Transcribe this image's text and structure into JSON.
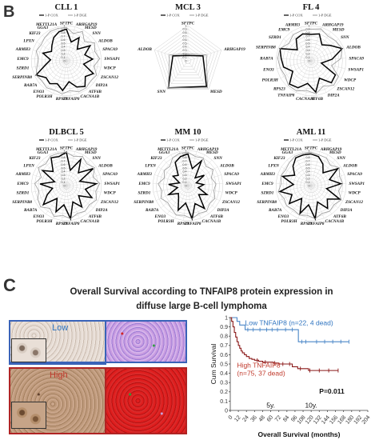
{
  "panel_b_letter": "B",
  "panel_c_letter": "C",
  "legend": {
    "cox": "1-P COX",
    "dge": "1-P DGE"
  },
  "radar_ticks": [
    "0",
    "0.1",
    "0.2",
    "0.3",
    "0.4",
    "0.5",
    "0.6",
    "0.7",
    "0.8",
    "0.9",
    "1"
  ],
  "colors": {
    "cox": "#000000",
    "dge": "#9a9a9a",
    "low_curve": "#4a86c7",
    "high_curve": "#8b1a1a",
    "low_text": "#2f74c0",
    "high_text": "#c0392b"
  },
  "chart_data": [
    {
      "type": "radar",
      "title": "CLL 1",
      "axes": [
        "SFTPC",
        "ARHGAP19",
        "MESD",
        "SNN",
        "ALDOB",
        "SPACA9",
        "SWSAP1",
        "WDCP",
        "ZSCAN12",
        "DIP2A",
        "ATF6B",
        "CACNA1B",
        "TNFAIP8",
        "RPS23",
        "POLR3H",
        "ENO3",
        "RAB7A",
        "SERPINB8",
        "SZRD1",
        "EMC9",
        "ARMH3",
        "LPXN",
        "KIF23",
        "GGA3",
        "METTL21A"
      ],
      "series": [
        {
          "name": "1-P COX",
          "values": [
            0.9,
            0.55,
            0.75,
            0.45,
            0.8,
            0.55,
            0.75,
            0.5,
            0.85,
            0.7,
            0.9,
            0.8,
            0.6,
            0.85,
            0.7,
            0.8,
            0.75,
            0.95,
            0.6,
            0.45,
            0.7,
            0.5,
            0.6,
            0.75,
            0.85
          ]
        },
        {
          "name": "1-P DGE",
          "values": [
            0.95,
            0.8,
            0.95,
            0.75,
            0.95,
            0.85,
            0.95,
            0.8,
            0.95,
            0.9,
            0.95,
            0.95,
            0.85,
            0.95,
            0.9,
            0.95,
            0.9,
            0.95,
            0.85,
            0.8,
            0.9,
            0.85,
            0.9,
            0.95,
            0.95
          ]
        }
      ]
    },
    {
      "type": "radar",
      "title": "MCL 3",
      "axes": [
        "SFTPC",
        "ARHGAP19",
        "MESD",
        "SNN",
        "ALDOB"
      ],
      "series": [
        {
          "name": "1-P COX",
          "values": [
            0.15,
            0.45,
            0.9,
            0.95,
            0.45
          ]
        },
        {
          "name": "1-P DGE",
          "values": [
            0.2,
            0.55,
            0.95,
            0.95,
            0.55
          ]
        }
      ]
    },
    {
      "type": "radar",
      "title": "FL 4",
      "axes": [
        "SFTPC",
        "ARHGAP19",
        "MESD",
        "SNN",
        "ALDOB",
        "SPACA9",
        "SWSAP1",
        "WDCP",
        "ZSCAN12",
        "DIP2A",
        "ATF6B",
        "CACNA1B",
        "TNFAIP8",
        "RPS23",
        "POLR3H",
        "ENO3",
        "RAB7A",
        "SERPINB8",
        "SZRD1",
        "EMC9",
        "ARMH3"
      ],
      "series": [
        {
          "name": "1-P COX",
          "values": [
            0.75,
            0.8,
            0.55,
            0.7,
            0.95,
            0.6,
            0.3,
            0.8,
            0.85,
            0.55,
            0.9,
            0.65,
            0.85,
            0.9,
            0.6,
            0.8,
            0.85,
            0.95,
            0.5,
            0.75,
            0.8
          ]
        },
        {
          "name": "1-P DGE",
          "values": [
            0.9,
            0.95,
            0.85,
            0.9,
            0.95,
            0.85,
            0.6,
            0.9,
            0.95,
            0.8,
            0.95,
            0.85,
            0.95,
            0.95,
            0.85,
            0.9,
            0.95,
            0.95,
            0.8,
            0.9,
            0.9
          ]
        }
      ]
    },
    {
      "type": "radar",
      "title": "DLBCL 5",
      "axes": [
        "SFTPC",
        "ARHGAP19",
        "MESD",
        "SNN",
        "ALDOB",
        "SPACA9",
        "SWSAP1",
        "WDCP",
        "ZSCAN12",
        "DIP2A",
        "ATF6B",
        "CACNA1B",
        "TNFAIP8",
        "RPS23",
        "POLR3H",
        "ENO3",
        "RAB7A",
        "SERPINB8",
        "SZRD1",
        "EMC9",
        "ARMH3",
        "LPXN",
        "KIF23",
        "GGA3",
        "METTL21A"
      ],
      "series": [
        {
          "name": "1-P COX",
          "values": [
            0.95,
            0.45,
            0.85,
            0.5,
            0.9,
            0.4,
            0.85,
            0.55,
            0.8,
            0.45,
            0.75,
            0.5,
            0.95,
            0.55,
            0.8,
            0.45,
            0.85,
            0.6,
            0.4,
            0.75,
            0.35,
            0.8,
            0.55,
            0.9,
            0.85
          ]
        },
        {
          "name": "1-P DGE",
          "values": [
            0.95,
            0.85,
            0.95,
            0.85,
            0.95,
            0.8,
            0.95,
            0.85,
            0.95,
            0.85,
            0.9,
            0.85,
            0.95,
            0.85,
            0.95,
            0.8,
            0.95,
            0.9,
            0.8,
            0.9,
            0.75,
            0.95,
            0.85,
            0.95,
            0.95
          ]
        }
      ]
    },
    {
      "type": "radar",
      "title": "MM 10",
      "axes": [
        "SFTPC",
        "ARHGAP19",
        "MESD",
        "SNN",
        "ALDOB",
        "SPACA9",
        "SWSAP1",
        "WDCP",
        "ZSCAN12",
        "DIP2A",
        "ATF6B",
        "CACNA1B",
        "TNFAIP8",
        "RPS23",
        "POLR3H",
        "ENO3",
        "RAB7A",
        "SERPINB8",
        "SZRD1",
        "EMC9",
        "ARMH3",
        "LPXN",
        "KIF23",
        "GGA3",
        "METTL21A"
      ],
      "series": [
        {
          "name": "1-P COX",
          "values": [
            0.9,
            0.5,
            0.8,
            0.3,
            0.55,
            0.25,
            0.45,
            0.3,
            0.6,
            0.4,
            0.8,
            0.55,
            0.95,
            0.5,
            0.75,
            0.45,
            0.35,
            0.6,
            0.3,
            0.55,
            0.25,
            0.5,
            0.4,
            0.75,
            0.85
          ]
        },
        {
          "name": "1-P DGE",
          "values": [
            0.95,
            0.85,
            0.9,
            0.75,
            0.85,
            0.7,
            0.8,
            0.75,
            0.85,
            0.8,
            0.9,
            0.85,
            0.95,
            0.85,
            0.9,
            0.8,
            0.75,
            0.85,
            0.75,
            0.85,
            0.7,
            0.8,
            0.75,
            0.9,
            0.95
          ]
        }
      ]
    },
    {
      "type": "radar",
      "title": "AML 11",
      "axes": [
        "SFTPC",
        "ARHGAP19",
        "MESD",
        "SNN",
        "ALDOB",
        "SPACA9",
        "SWSAP1",
        "WDCP",
        "ZSCAN12",
        "DIP2A",
        "ATF6B",
        "CACNA1B",
        "TNFAIP8",
        "RPS23",
        "POLR3H",
        "ENO3",
        "RAB7A",
        "SERPINB8",
        "SZRD1",
        "EMC9",
        "ARMH3",
        "LPXN",
        "KIF23",
        "GGA3",
        "METTL21A"
      ],
      "series": [
        {
          "name": "1-P COX",
          "values": [
            0.9,
            0.85,
            0.7,
            0.5,
            0.9,
            0.55,
            0.85,
            0.45,
            0.9,
            0.6,
            0.8,
            0.5,
            0.95,
            0.55,
            0.85,
            0.45,
            0.8,
            0.6,
            0.9,
            0.5,
            0.85,
            0.55,
            0.75,
            0.9,
            0.9
          ]
        },
        {
          "name": "1-P DGE",
          "values": [
            0.95,
            0.9,
            0.9,
            0.8,
            0.95,
            0.85,
            0.9,
            0.8,
            0.95,
            0.85,
            0.9,
            0.85,
            0.95,
            0.85,
            0.9,
            0.85,
            0.9,
            0.85,
            0.95,
            0.85,
            0.9,
            0.85,
            0.9,
            0.95,
            0.95
          ]
        }
      ]
    },
    {
      "type": "line",
      "subtype": "kaplan-meier",
      "xlabel": "Overall Survival (months)",
      "ylabel": "Cum Survival",
      "xticks": [
        0,
        12,
        24,
        36,
        48,
        60,
        72,
        84,
        96,
        108,
        120,
        132,
        144,
        156,
        168,
        180,
        192,
        204
      ],
      "yticks": [
        "0",
        "0.1",
        "0.2",
        "0.3",
        "0.4",
        "0.5",
        "0.6",
        "0.7",
        "0.8",
        "0.9",
        "1"
      ],
      "xlim": [
        0,
        204
      ],
      "ylim": [
        0,
        1
      ],
      "series": [
        {
          "name": "Low TNFAIP8 (n=22, 4 dead)",
          "x": [
            0,
            6,
            10,
            14,
            22,
            30,
            40,
            52,
            60,
            66,
            78,
            90,
            101,
            120,
            140,
            160,
            176
          ],
          "y": [
            1,
            1,
            0.96,
            0.92,
            0.87,
            0.87,
            0.87,
            0.87,
            0.87,
            0.87,
            0.87,
            0.87,
            0.74,
            0.74,
            0.74,
            0.74,
            0.74
          ],
          "censored_x": [
            26,
            34,
            44,
            54,
            62,
            70,
            82,
            92,
            106,
            112,
            128,
            140,
            152,
            164,
            176
          ]
        },
        {
          "name": "High TNFAIP8 (n=75, 37 dead)",
          "x": [
            0,
            2,
            4,
            6,
            8,
            10,
            12,
            14,
            16,
            18,
            21,
            24,
            28,
            32,
            36,
            42,
            48,
            56,
            64,
            72,
            84,
            92,
            100,
            116,
            150,
            160
          ],
          "y": [
            1,
            0.96,
            0.9,
            0.84,
            0.79,
            0.74,
            0.7,
            0.67,
            0.64,
            0.62,
            0.6,
            0.58,
            0.56,
            0.55,
            0.54,
            0.53,
            0.52,
            0.52,
            0.51,
            0.5,
            0.5,
            0.47,
            0.45,
            0.43,
            0.43,
            0.43
          ],
          "censored_x": [
            40,
            52,
            66,
            78,
            88,
            104,
            118,
            132,
            146,
            160
          ]
        }
      ],
      "annotations": {
        "p_value": "P=0.011",
        "mark_5y": "5y.",
        "mark_10y": "10y."
      }
    }
  ],
  "panel_c": {
    "title_line1": "Overall Survival according to TNFAIP8 protein expression in",
    "title_line2": "diffuse large B-cell lymphoma",
    "low_label": "Low",
    "high_label": "High"
  }
}
